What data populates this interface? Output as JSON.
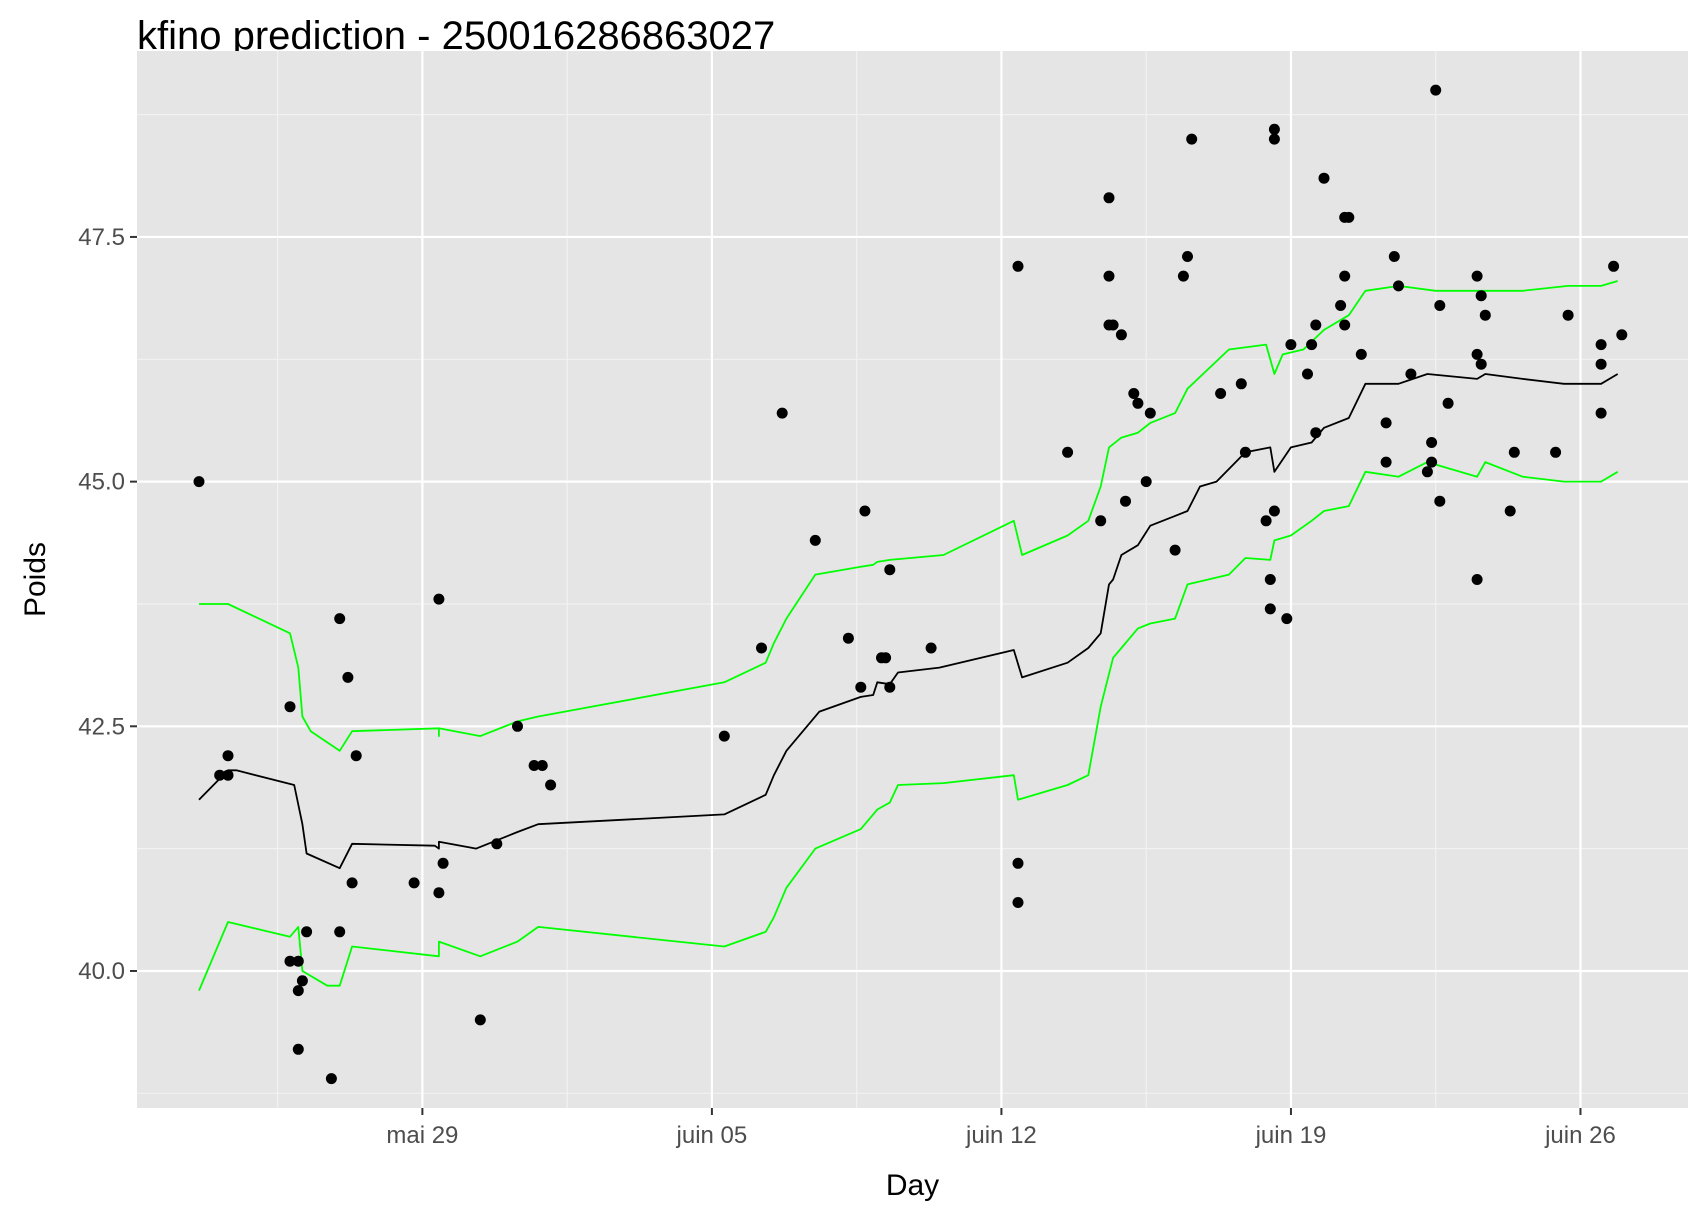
{
  "chart_data": {
    "type": "scatter",
    "title": "kfino prediction - 250016286863027",
    "xlabel": "Day",
    "ylabel": "Poids",
    "x_ticks": [
      {
        "label": "mai 29",
        "day": 29
      },
      {
        "label": "juin 05",
        "day": 36
      },
      {
        "label": "juin 12",
        "day": 43
      },
      {
        "label": "juin 19",
        "day": 50
      },
      {
        "label": "juin 26",
        "day": 57
      }
    ],
    "y_ticks": [
      {
        "label": "40.0",
        "value": 40.0
      },
      {
        "label": "42.5",
        "value": 42.5
      },
      {
        "label": "45.0",
        "value": 45.0
      },
      {
        "label": "47.5",
        "value": 47.5
      }
    ],
    "xlim": [
      22.1,
      59.6
    ],
    "ylim": [
      38.6,
      49.4
    ],
    "x_unit": "days since May 1 (May 29 = 29, June 5 = 36)",
    "grid": true,
    "colors": {
      "panel": "#e5e5e5",
      "grid_major": "#ffffff",
      "grid_minor": "#f2f2f2",
      "points": "#000000",
      "prediction": "#000000",
      "bounds": "#00ff00"
    },
    "points": [
      [
        23.6,
        45.0
      ],
      [
        24.1,
        42.0
      ],
      [
        24.3,
        42.0
      ],
      [
        24.3,
        42.2
      ],
      [
        25.8,
        42.7
      ],
      [
        25.8,
        40.1
      ],
      [
        26.0,
        40.1
      ],
      [
        26.0,
        39.8
      ],
      [
        26.0,
        39.2
      ],
      [
        26.1,
        39.9
      ],
      [
        26.2,
        40.4
      ],
      [
        26.8,
        38.9
      ],
      [
        27.0,
        43.6
      ],
      [
        27.0,
        40.4
      ],
      [
        27.2,
        43.0
      ],
      [
        27.3,
        40.9
      ],
      [
        27.4,
        42.2
      ],
      [
        28.8,
        40.9
      ],
      [
        29.4,
        43.8
      ],
      [
        29.4,
        40.8
      ],
      [
        29.5,
        41.1
      ],
      [
        30.4,
        39.5
      ],
      [
        30.8,
        41.3
      ],
      [
        31.3,
        42.5
      ],
      [
        31.7,
        42.1
      ],
      [
        31.9,
        42.1
      ],
      [
        32.1,
        41.9
      ],
      [
        36.3,
        42.4
      ],
      [
        37.2,
        43.3
      ],
      [
        37.7,
        45.7
      ],
      [
        38.5,
        44.4
      ],
      [
        39.3,
        43.4
      ],
      [
        39.6,
        42.9
      ],
      [
        39.7,
        44.7
      ],
      [
        40.1,
        43.2
      ],
      [
        40.2,
        43.2
      ],
      [
        40.3,
        42.9
      ],
      [
        40.3,
        44.1
      ],
      [
        41.3,
        43.3
      ],
      [
        43.4,
        47.2
      ],
      [
        43.4,
        41.1
      ],
      [
        43.4,
        40.7
      ],
      [
        44.6,
        45.3
      ],
      [
        45.4,
        44.6
      ],
      [
        45.6,
        47.9
      ],
      [
        45.6,
        47.1
      ],
      [
        45.6,
        46.6
      ],
      [
        45.7,
        46.6
      ],
      [
        45.9,
        46.5
      ],
      [
        46.0,
        44.8
      ],
      [
        46.2,
        45.9
      ],
      [
        46.3,
        45.8
      ],
      [
        46.5,
        45.0
      ],
      [
        46.6,
        45.7
      ],
      [
        47.2,
        44.3
      ],
      [
        47.4,
        47.1
      ],
      [
        47.5,
        47.3
      ],
      [
        47.6,
        48.5
      ],
      [
        48.3,
        45.9
      ],
      [
        48.8,
        46.0
      ],
      [
        48.9,
        45.3
      ],
      [
        49.4,
        44.6
      ],
      [
        49.5,
        44.0
      ],
      [
        49.5,
        43.7
      ],
      [
        49.6,
        48.6
      ],
      [
        49.6,
        48.5
      ],
      [
        49.6,
        44.7
      ],
      [
        49.9,
        43.6
      ],
      [
        50.0,
        46.4
      ],
      [
        50.4,
        46.1
      ],
      [
        50.5,
        46.4
      ],
      [
        50.6,
        46.6
      ],
      [
        50.6,
        45.5
      ],
      [
        50.8,
        48.1
      ],
      [
        51.2,
        46.8
      ],
      [
        51.3,
        46.6
      ],
      [
        51.3,
        47.7
      ],
      [
        51.3,
        47.1
      ],
      [
        51.4,
        47.7
      ],
      [
        51.7,
        46.3
      ],
      [
        52.3,
        45.6
      ],
      [
        52.3,
        45.2
      ],
      [
        52.5,
        47.3
      ],
      [
        52.6,
        47.0
      ],
      [
        52.9,
        46.1
      ],
      [
        53.3,
        45.1
      ],
      [
        53.4,
        45.2
      ],
      [
        53.4,
        45.4
      ],
      [
        53.5,
        49.0
      ],
      [
        53.6,
        44.8
      ],
      [
        53.6,
        46.8
      ],
      [
        53.8,
        45.8
      ],
      [
        54.5,
        44.0
      ],
      [
        54.5,
        47.1
      ],
      [
        54.5,
        46.3
      ],
      [
        54.6,
        46.9
      ],
      [
        54.6,
        46.2
      ],
      [
        54.7,
        46.7
      ],
      [
        55.3,
        44.7
      ],
      [
        55.4,
        45.3
      ],
      [
        56.4,
        45.3
      ],
      [
        56.7,
        46.7
      ],
      [
        57.5,
        46.2
      ],
      [
        57.5,
        45.7
      ],
      [
        57.5,
        46.4
      ],
      [
        57.8,
        47.2
      ],
      [
        58.0,
        46.5
      ]
    ],
    "series": [
      {
        "role": "prediction",
        "color": "#000000",
        "points": [
          [
            23.6,
            41.75
          ],
          [
            24.3,
            42.05
          ],
          [
            24.5,
            42.05
          ],
          [
            25.9,
            41.9
          ],
          [
            26.1,
            41.5
          ],
          [
            26.2,
            41.2
          ],
          [
            27.0,
            41.05
          ],
          [
            27.3,
            41.3
          ],
          [
            29.3,
            41.28
          ],
          [
            29.4,
            41.25
          ],
          [
            29.4,
            41.32
          ],
          [
            30.3,
            41.25
          ],
          [
            31.3,
            41.42
          ],
          [
            31.8,
            41.5
          ],
          [
            36.3,
            41.6
          ],
          [
            37.3,
            41.8
          ],
          [
            37.5,
            42.0
          ],
          [
            37.8,
            42.25
          ],
          [
            38.6,
            42.65
          ],
          [
            39.6,
            42.8
          ],
          [
            39.9,
            42.82
          ],
          [
            40.0,
            42.95
          ],
          [
            40.3,
            42.93
          ],
          [
            40.5,
            43.05
          ],
          [
            41.5,
            43.1
          ],
          [
            43.3,
            43.28
          ],
          [
            43.5,
            43.0
          ],
          [
            44.6,
            43.15
          ],
          [
            45.1,
            43.3
          ],
          [
            45.4,
            43.45
          ],
          [
            45.6,
            43.95
          ],
          [
            45.7,
            44.0
          ],
          [
            45.9,
            44.25
          ],
          [
            46.3,
            44.35
          ],
          [
            46.6,
            44.55
          ],
          [
            47.2,
            44.65
          ],
          [
            47.5,
            44.7
          ],
          [
            47.8,
            44.95
          ],
          [
            48.2,
            45.0
          ],
          [
            48.9,
            45.3
          ],
          [
            49.5,
            45.35
          ],
          [
            49.6,
            45.1
          ],
          [
            50.0,
            45.35
          ],
          [
            50.5,
            45.4
          ],
          [
            50.8,
            45.55
          ],
          [
            51.4,
            45.65
          ],
          [
            51.8,
            46.0
          ],
          [
            52.6,
            46.0
          ],
          [
            53.3,
            46.1
          ],
          [
            54.5,
            46.05
          ],
          [
            54.7,
            46.1
          ],
          [
            55.6,
            46.05
          ],
          [
            56.6,
            46.0
          ],
          [
            57.5,
            46.0
          ],
          [
            57.9,
            46.1
          ]
        ]
      },
      {
        "role": "upper bound",
        "color": "#00ff00",
        "points": [
          [
            23.6,
            43.75
          ],
          [
            24.3,
            43.75
          ],
          [
            25.8,
            43.45
          ],
          [
            26.0,
            43.1
          ],
          [
            26.1,
            42.6
          ],
          [
            26.3,
            42.45
          ],
          [
            27.0,
            42.25
          ],
          [
            27.3,
            42.45
          ],
          [
            29.4,
            42.48
          ],
          [
            29.4,
            42.4
          ],
          [
            29.4,
            42.48
          ],
          [
            30.4,
            42.4
          ],
          [
            31.3,
            42.55
          ],
          [
            31.8,
            42.6
          ],
          [
            36.3,
            42.95
          ],
          [
            37.3,
            43.15
          ],
          [
            37.5,
            43.35
          ],
          [
            37.8,
            43.6
          ],
          [
            38.5,
            44.05
          ],
          [
            39.6,
            44.13
          ],
          [
            39.9,
            44.15
          ],
          [
            40.0,
            44.18
          ],
          [
            40.3,
            44.2
          ],
          [
            41.6,
            44.25
          ],
          [
            43.3,
            44.6
          ],
          [
            43.5,
            44.25
          ],
          [
            44.6,
            44.45
          ],
          [
            45.1,
            44.6
          ],
          [
            45.4,
            44.95
          ],
          [
            45.6,
            45.35
          ],
          [
            45.9,
            45.45
          ],
          [
            46.3,
            45.5
          ],
          [
            46.6,
            45.6
          ],
          [
            47.2,
            45.7
          ],
          [
            47.5,
            45.95
          ],
          [
            48.5,
            46.35
          ],
          [
            49.4,
            46.4
          ],
          [
            49.6,
            46.1
          ],
          [
            49.8,
            46.3
          ],
          [
            50.3,
            46.35
          ],
          [
            50.8,
            46.55
          ],
          [
            51.4,
            46.7
          ],
          [
            51.8,
            46.95
          ],
          [
            52.6,
            47.0
          ],
          [
            53.5,
            46.95
          ],
          [
            54.7,
            46.95
          ],
          [
            55.6,
            46.95
          ],
          [
            56.7,
            47.0
          ],
          [
            57.5,
            47.0
          ],
          [
            57.9,
            47.05
          ]
        ]
      },
      {
        "role": "lower bound",
        "color": "#00ff00",
        "points": [
          [
            23.6,
            39.8
          ],
          [
            24.1,
            40.3
          ],
          [
            24.3,
            40.5
          ],
          [
            25.8,
            40.35
          ],
          [
            26.0,
            40.45
          ],
          [
            26.1,
            40.0
          ],
          [
            26.7,
            39.85
          ],
          [
            27.0,
            39.85
          ],
          [
            27.3,
            40.25
          ],
          [
            29.4,
            40.15
          ],
          [
            29.4,
            40.3
          ],
          [
            30.4,
            40.15
          ],
          [
            31.3,
            40.3
          ],
          [
            31.8,
            40.45
          ],
          [
            36.3,
            40.25
          ],
          [
            37.3,
            40.4
          ],
          [
            37.5,
            40.55
          ],
          [
            37.8,
            40.85
          ],
          [
            38.5,
            41.25
          ],
          [
            39.6,
            41.45
          ],
          [
            39.9,
            41.6
          ],
          [
            40.0,
            41.65
          ],
          [
            40.3,
            41.72
          ],
          [
            40.5,
            41.9
          ],
          [
            41.6,
            41.92
          ],
          [
            43.3,
            42.0
          ],
          [
            43.4,
            41.75
          ],
          [
            44.6,
            41.9
          ],
          [
            45.1,
            42.0
          ],
          [
            45.4,
            42.7
          ],
          [
            45.7,
            43.2
          ],
          [
            45.9,
            43.3
          ],
          [
            46.3,
            43.5
          ],
          [
            46.6,
            43.55
          ],
          [
            47.2,
            43.6
          ],
          [
            47.5,
            43.95
          ],
          [
            48.5,
            44.05
          ],
          [
            48.9,
            44.22
          ],
          [
            49.5,
            44.2
          ],
          [
            49.6,
            44.4
          ],
          [
            50.0,
            44.45
          ],
          [
            50.5,
            44.6
          ],
          [
            50.8,
            44.7
          ],
          [
            51.4,
            44.75
          ],
          [
            51.8,
            45.1
          ],
          [
            52.6,
            45.05
          ],
          [
            53.3,
            45.2
          ],
          [
            54.5,
            45.05
          ],
          [
            54.7,
            45.2
          ],
          [
            55.6,
            45.05
          ],
          [
            56.6,
            45.0
          ],
          [
            57.5,
            45.0
          ],
          [
            57.9,
            45.1
          ]
        ]
      }
    ]
  }
}
